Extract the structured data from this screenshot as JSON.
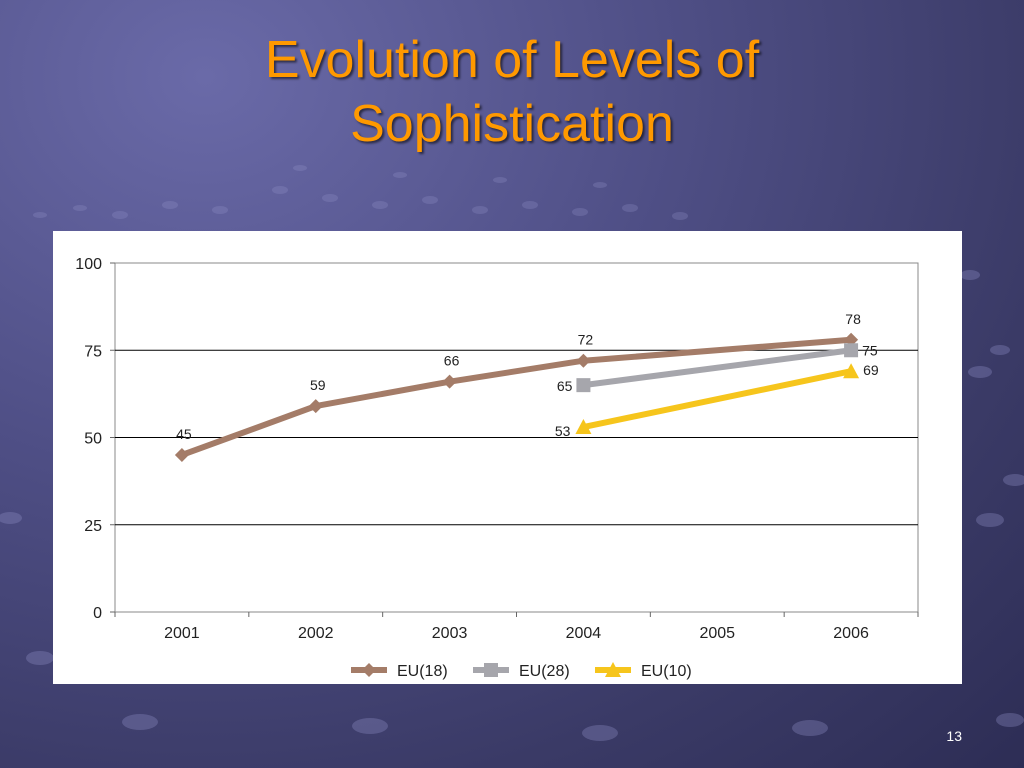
{
  "slide": {
    "title_line1": "Evolution of Levels of",
    "title_line2": "Sophistication",
    "page_number": "13",
    "title_color": "#ff9900"
  },
  "chart_data": {
    "type": "line",
    "title": "",
    "xlabel": "",
    "ylabel": "",
    "categories": [
      "2001",
      "2002",
      "2003",
      "2004",
      "2005",
      "2006"
    ],
    "ylim": [
      0,
      100
    ],
    "yticks": [
      "0",
      "25",
      "50",
      "75",
      "100"
    ],
    "grid": true,
    "legend_position": "bottom",
    "series": [
      {
        "name": "EU(18)",
        "color": "#a47c68",
        "marker": "diamond",
        "points": [
          {
            "x": "2001",
            "y": 45,
            "label": "45"
          },
          {
            "x": "2002",
            "y": 59,
            "label": "59"
          },
          {
            "x": "2003",
            "y": 66,
            "label": "66"
          },
          {
            "x": "2004",
            "y": 72,
            "label": "72"
          },
          {
            "x": "2006",
            "y": 78,
            "label": "78"
          }
        ]
      },
      {
        "name": "EU(28)",
        "color": "#a6a6ac",
        "marker": "square",
        "points": [
          {
            "x": "2004",
            "y": 65,
            "label": "65"
          },
          {
            "x": "2006",
            "y": 75,
            "label": "75"
          }
        ]
      },
      {
        "name": "EU(10)",
        "color": "#f6c51c",
        "marker": "triangle",
        "points": [
          {
            "x": "2004",
            "y": 53,
            "label": "53"
          },
          {
            "x": "2006",
            "y": 69,
            "label": "69"
          }
        ]
      }
    ]
  }
}
